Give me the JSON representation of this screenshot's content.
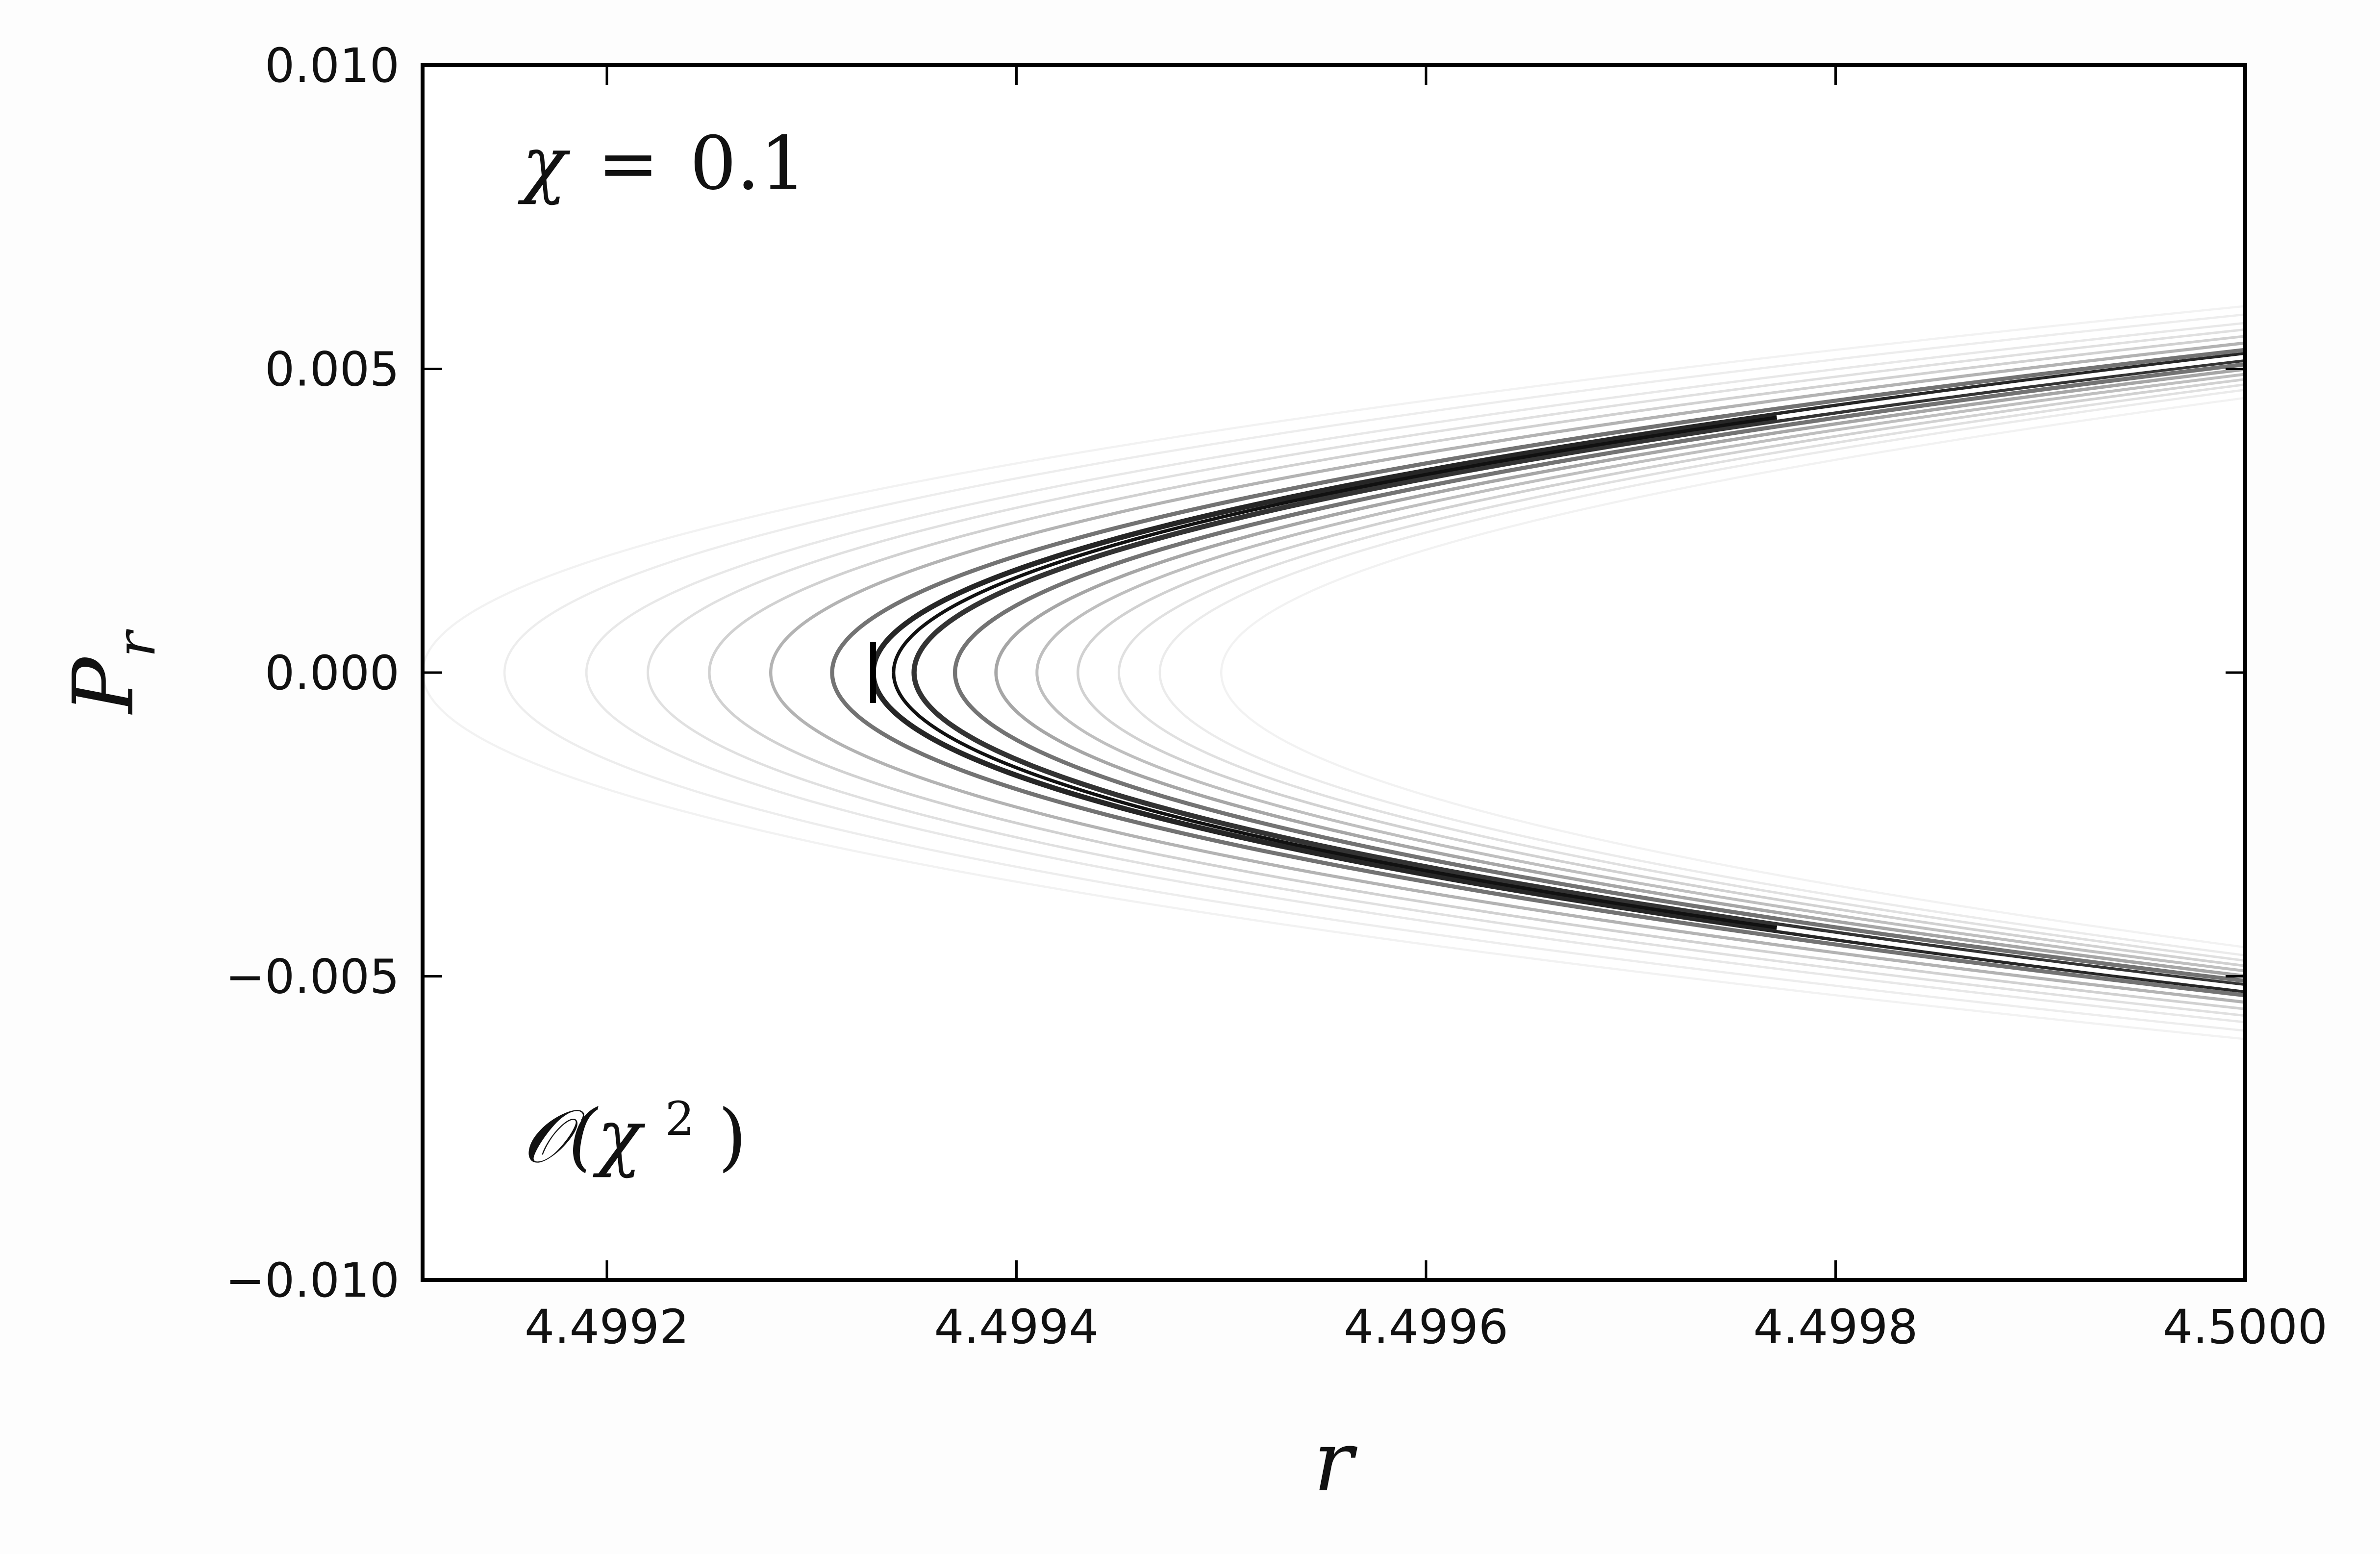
{
  "chart_data": {
    "type": "scatter",
    "title": "",
    "xlabel": "r",
    "ylabel": "P",
    "ylabel_sub": "r",
    "xlim": [
      4.49911,
      4.5
    ],
    "ylim": [
      -0.01,
      0.01
    ],
    "xticks": [
      4.4992,
      4.4994,
      4.4996,
      4.4998,
      4.5
    ],
    "xtick_labels": [
      "4.4992",
      "4.4994",
      "4.4996",
      "4.4998",
      "4.5000"
    ],
    "yticks": [
      -0.01,
      -0.005,
      0.0,
      0.005,
      0.01
    ],
    "ytick_labels": [
      "−0.010",
      "−0.005",
      "0.000",
      "0.005",
      "0.010"
    ],
    "grid": false,
    "annotations": {
      "top_left": {
        "lhs": "χ",
        "eq": "=",
        "rhs": "0.1"
      },
      "bottom_left": {
        "pre": "𝒪(χ",
        "sup": "2",
        "post": ")"
      }
    },
    "curve_family": {
      "model": "r = r_min + k * P_r^2",
      "k": 24.45,
      "r_min_values": [
        4.49911,
        4.49915,
        4.49919,
        4.49922,
        4.49925,
        4.49928,
        4.49931,
        4.49933,
        4.49935,
        4.49937,
        4.49939,
        4.49941,
        4.49943,
        4.49945,
        4.49947,
        4.4995
      ],
      "intensity": [
        0.05,
        0.07,
        0.09,
        0.12,
        0.18,
        0.3,
        0.55,
        0.85,
        0.8,
        0.55,
        0.35,
        0.25,
        0.18,
        0.12,
        0.08,
        0.05
      ],
      "dark_segment": {
        "r_min": 4.49934,
        "P_r_to": 0.0042,
        "r_to": 4.49968
      },
      "small_mark": {
        "r": 4.49933,
        "P_r_from": -0.0005,
        "P_r_to": 0.0005
      }
    }
  }
}
